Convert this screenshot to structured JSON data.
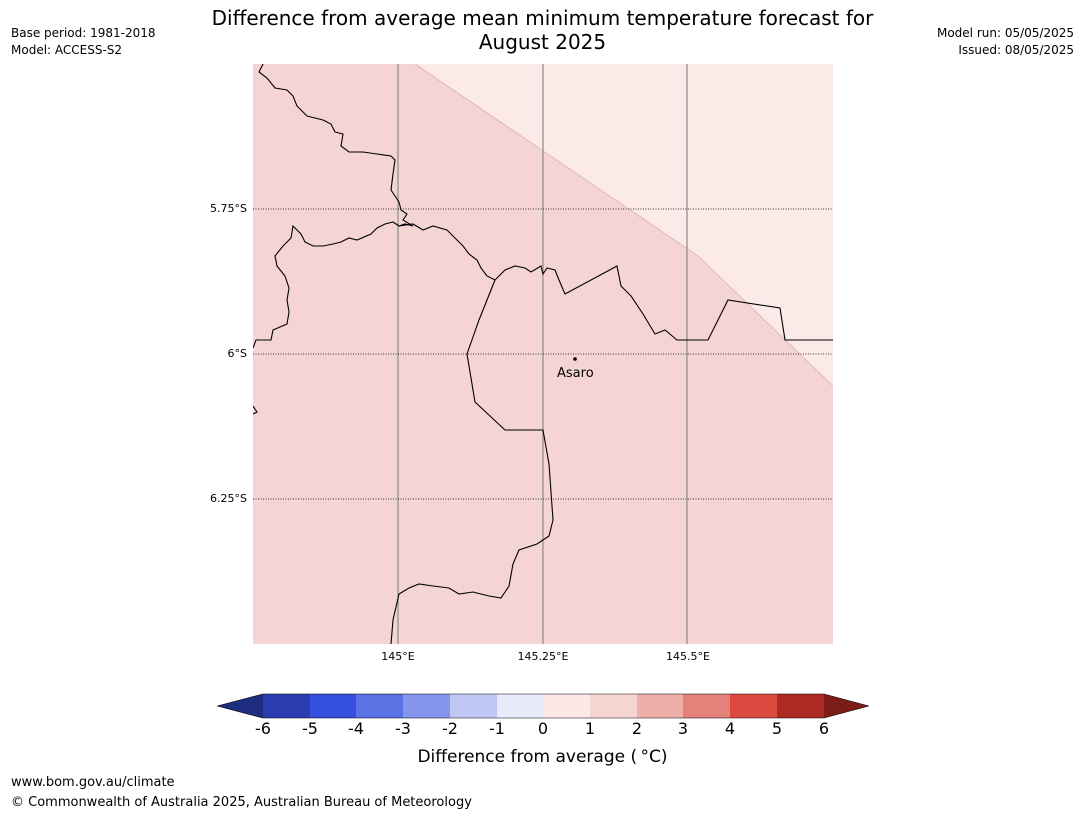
{
  "title_line1": "Difference from average mean minimum temperature forecast for",
  "title_line2": "August 2025",
  "base_period": "Base period: 1981-2018",
  "model": "Model: ACCESS-S2",
  "model_run": "Model run: 05/05/2025",
  "issued": "Issued: 08/05/2025",
  "place_name": "Asaro",
  "lat_labels": [
    "5.75°S",
    "6°S",
    "6.25°S"
  ],
  "lon_labels": [
    "145°E",
    "145.25°E",
    "145.5°E"
  ],
  "colorbar": {
    "ticks": [
      "-6",
      "-5",
      "-4",
      "-3",
      "-2",
      "-1",
      "0",
      "1",
      "2",
      "3",
      "4",
      "5",
      "6"
    ],
    "colors": [
      "#1f2d80",
      "#2a3db0",
      "#3550dc",
      "#5a72e4",
      "#8595ec",
      "#c0c7f4",
      "#e8eafc",
      "#fce9e7",
      "#f6d4d1",
      "#eeafa9",
      "#e5807a",
      "#dc4a3f",
      "#ad2a22",
      "#7a1c17"
    ],
    "label": "Difference from average (°C)",
    "label_display": "Difference from average ( °C)"
  },
  "map_fill": {
    "main": "#f5d5d3",
    "light": "#fceae8"
  },
  "footer_url": "www.bom.gov.au/climate",
  "footer_copyright": "© Commonwealth of Australia 2025, Australian Bureau of Meteorology"
}
